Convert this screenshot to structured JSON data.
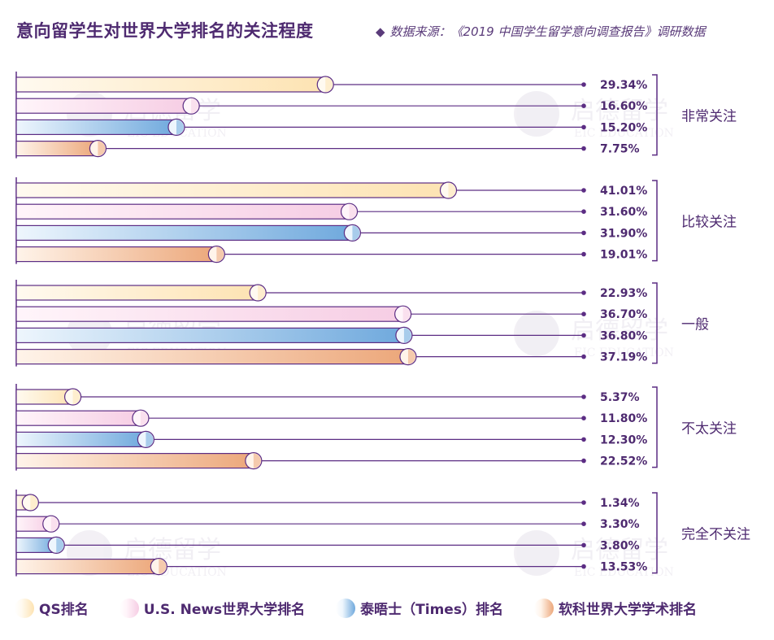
{
  "title": "意向留学生对世界大学排名的关注程度",
  "source": "数据来源：《2019 中国学生留学意向调查报告》调研数据",
  "watermark": {
    "cn": "启德留学",
    "en": "EIC EDUCATION"
  },
  "colors": {
    "axis": "#5c2d84",
    "text": "#4e2a70",
    "series": [
      {
        "light": "#fffaf0",
        "dark": "#fde3b2"
      },
      {
        "light": "#fff5fa",
        "dark": "#f6cde4"
      },
      {
        "light": "#eef6fd",
        "dark": "#6fa9dd"
      },
      {
        "light": "#fff4ea",
        "dark": "#eca77a"
      }
    ]
  },
  "chart_data": {
    "type": "bar",
    "orientation": "horizontal",
    "categories": [
      "非常关注",
      "比较关注",
      "一般",
      "不太关注",
      "完全不关注"
    ],
    "series": [
      {
        "name": "QS排名",
        "values": [
          29.34,
          41.01,
          22.93,
          5.37,
          1.34
        ]
      },
      {
        "name": "U.S. News世界大学排名",
        "values": [
          16.6,
          31.6,
          36.7,
          11.8,
          3.3
        ]
      },
      {
        "name": "泰晤士（Times）排名",
        "values": [
          15.2,
          31.9,
          36.8,
          12.3,
          3.8
        ]
      },
      {
        "name": "软科世界大学学术排名",
        "values": [
          7.75,
          19.01,
          37.19,
          22.52,
          13.53
        ]
      }
    ],
    "value_labels": [
      [
        "29.34%",
        "16.60%",
        "15.20%",
        "7.75%"
      ],
      [
        "41.01%",
        "31.60%",
        "31.90%",
        "19.01%"
      ],
      [
        "22.93%",
        "36.70%",
        "36.80%",
        "37.19%"
      ],
      [
        "5.37%",
        "11.80%",
        "12.30%",
        "22.52%"
      ],
      [
        "1.34%",
        "3.30%",
        "3.80%",
        "13.53%"
      ]
    ],
    "unit": "%",
    "legend_position": "bottom"
  }
}
